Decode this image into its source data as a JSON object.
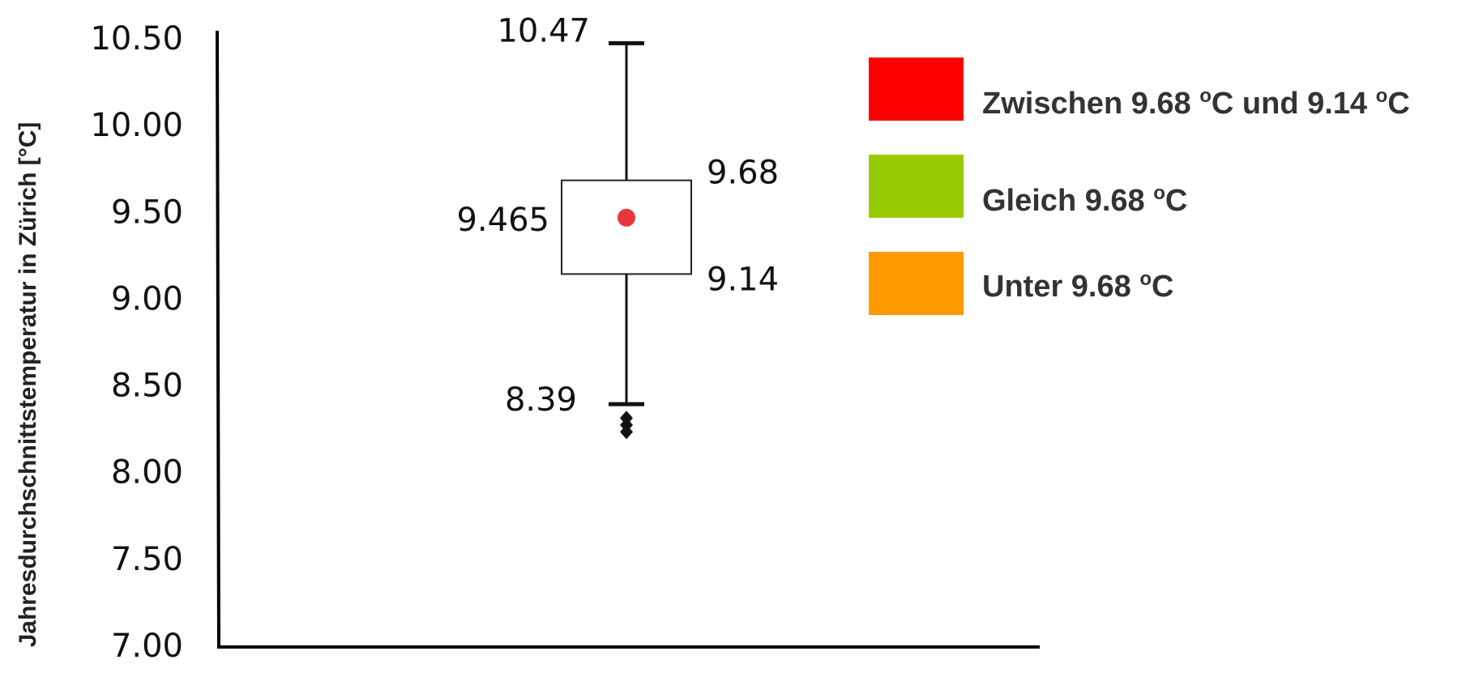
{
  "chart_data": {
    "type": "boxplot",
    "ylabel": "Jahresdurchschnittstemperatur in Zürich [°C]",
    "ylim": [
      7.0,
      10.5
    ],
    "yticks": [
      "7.00",
      "7.50",
      "8.00",
      "8.50",
      "9.00",
      "9.50",
      "10.00",
      "10.50"
    ],
    "grid": false,
    "legend_position": "top-right",
    "box": {
      "whisker_high": 10.47,
      "q3": 9.68,
      "mean": 9.465,
      "q1": 9.14,
      "whisker_low": 8.39,
      "outliers": [
        8.31,
        8.27,
        8.23
      ]
    },
    "annotations": {
      "whisker_high": "10.47",
      "q3": "9.68",
      "mean": "9.465",
      "q1": "9.14",
      "whisker_low": "8.39"
    },
    "mean_color": "#e8373b",
    "legend": [
      {
        "label": "Zwischen 9.68 ",
        "sup1": "o",
        "mid": "C und 9.14 ",
        "sup2": "o",
        "end": "C",
        "color": "#ff0000"
      },
      {
        "label": "Gleich 9.68 ",
        "sup1": "o",
        "mid": "C",
        "color": "#99cc00"
      },
      {
        "label": "Unter 9.68 ",
        "sup1": "o",
        "mid": "C",
        "color": "#ff9900"
      }
    ]
  }
}
